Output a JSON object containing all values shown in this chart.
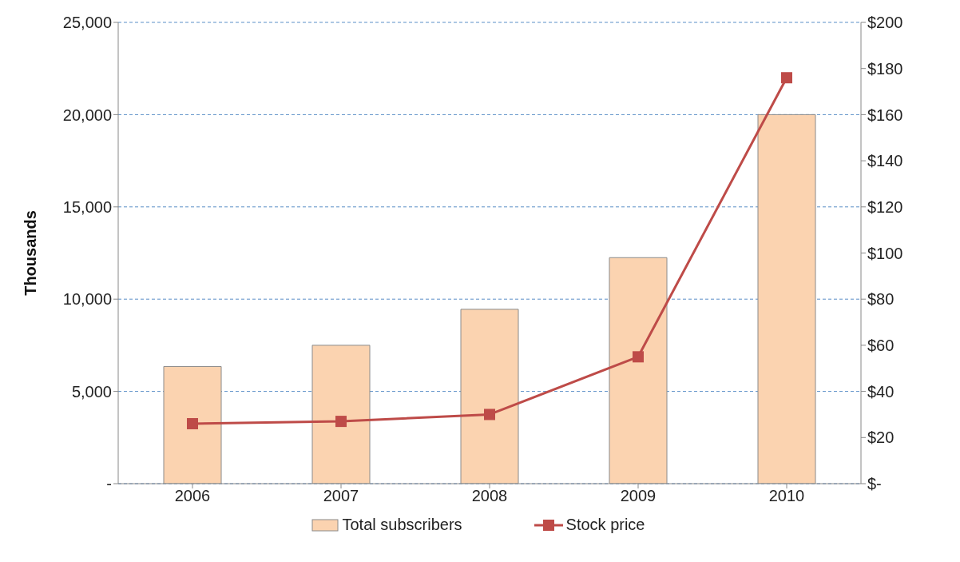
{
  "chart_data": {
    "type": "bar",
    "ylabel": "Thousands",
    "categories": [
      "2006",
      "2007",
      "2008",
      "2009",
      "2010"
    ],
    "series": [
      {
        "name": "Total subscribers",
        "color": "#fbd3b0",
        "values": [
          6350,
          7500,
          9450,
          12250,
          20000
        ]
      },
      {
        "name": "Stock price",
        "type": "line",
        "axis": "y2",
        "color": "#be4b48",
        "values": [
          26,
          27,
          30,
          55,
          176
        ],
        "marker": "square",
        "line_style": "solid"
      }
    ],
    "ylim": [
      0,
      25000
    ],
    "yticks": [
      {
        "value": 0,
        "label": "-"
      },
      {
        "value": 5000,
        "label": "5,000"
      },
      {
        "value": 10000,
        "label": "10,000"
      },
      {
        "value": 15000,
        "label": "15,000"
      },
      {
        "value": 20000,
        "label": "20,000"
      },
      {
        "value": 25000,
        "label": "25,000"
      }
    ],
    "y2lim": [
      0,
      200
    ],
    "y2ticks": [
      {
        "value": 0,
        "label": "$-"
      },
      {
        "value": 20,
        "label": "$20"
      },
      {
        "value": 40,
        "label": "$40"
      },
      {
        "value": 60,
        "label": "$60"
      },
      {
        "value": 80,
        "label": "$80"
      },
      {
        "value": 100,
        "label": "$100"
      },
      {
        "value": 120,
        "label": "$120"
      },
      {
        "value": 140,
        "label": "$140"
      },
      {
        "value": 160,
        "label": "$160"
      },
      {
        "value": 180,
        "label": "$180"
      },
      {
        "value": 200,
        "label": "$200"
      }
    ],
    "grid": "y",
    "legend": "bottom"
  }
}
